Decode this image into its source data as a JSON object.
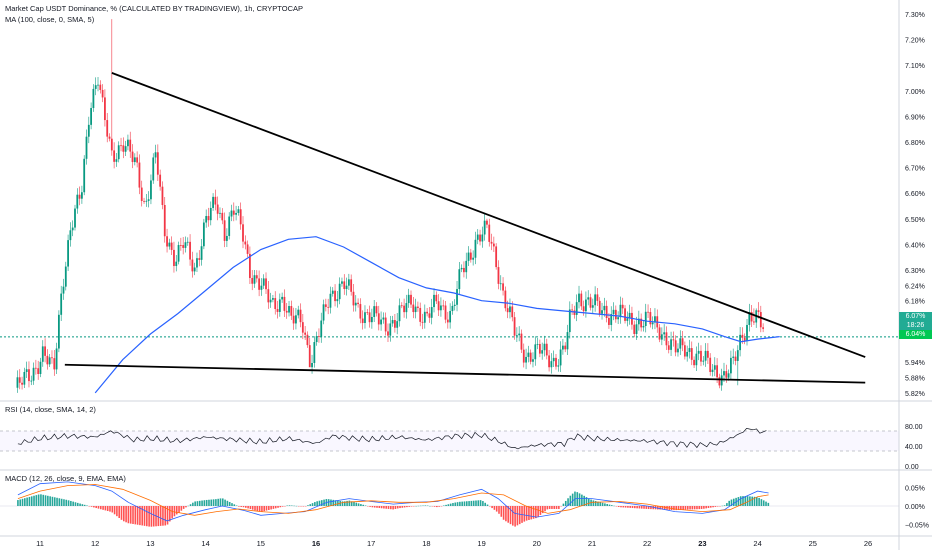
{
  "header": {
    "title": "Market Cap USDT Dominance, % (CALCULATED BY TRADINGVIEW), 1h, CRYPTOCAP",
    "ma_label": "MA (100, close, 0, SMA, 5)",
    "rsi_label": "RSI (14, close, SMA, 14, 2)",
    "macd_label": "MACD (12, 26, close, 9, EMA, EMA)"
  },
  "price_tags": {
    "last": "6.07%",
    "countdown": "18:26",
    "ma": "6.04%"
  },
  "colors": {
    "up": "#089981",
    "down": "#f23645",
    "ma": "#2962ff",
    "rsi": "#131722",
    "macd_line": "#2962ff",
    "signal_line": "#ff6d00",
    "hist_up": "#26a69a",
    "hist_down": "#ff5252",
    "dotted": "#089981",
    "trendline": "#000000"
  },
  "chart_data": [
    {
      "type": "candlestick",
      "title": "Market Cap USDT Dominance, % (CALCULATED BY TRADINGVIEW), 1h, CRYPTOCAP",
      "ylim": [
        5.8,
        7.3
      ],
      "yticks": [
        "7.30%",
        "7.20%",
        "7.10%",
        "7.00%",
        "6.90%",
        "6.80%",
        "6.70%",
        "6.60%",
        "6.50%",
        "6.40%",
        "6.30%",
        "6.24%",
        "6.18%",
        "6.12%",
        "5.94%",
        "5.88%",
        "5.82%"
      ],
      "ytick_values": [
        7.3,
        7.2,
        7.1,
        7.0,
        6.9,
        6.8,
        6.7,
        6.6,
        6.5,
        6.4,
        6.3,
        6.24,
        6.18,
        6.12,
        5.94,
        5.88,
        5.82
      ],
      "xticks": [
        "11",
        "12",
        "13",
        "14",
        "15",
        "16",
        "17",
        "18",
        "19",
        "20",
        "21",
        "22",
        "23",
        "24",
        "25",
        "26"
      ],
      "bold_xticks": [
        "16",
        "23"
      ],
      "close_path": [
        [
          10.6,
          5.84
        ],
        [
          10.85,
          5.9
        ],
        [
          11.05,
          5.97
        ],
        [
          11.25,
          5.9
        ],
        [
          11.4,
          6.25
        ],
        [
          11.55,
          6.45
        ],
        [
          11.75,
          6.6
        ],
        [
          11.9,
          6.95
        ],
        [
          12.05,
          7.05
        ],
        [
          12.15,
          6.9
        ],
        [
          12.3,
          6.75
        ],
        [
          12.5,
          6.8
        ],
        [
          12.75,
          6.7
        ],
        [
          12.9,
          6.55
        ],
        [
          13.1,
          6.75
        ],
        [
          13.25,
          6.45
        ],
        [
          13.45,
          6.35
        ],
        [
          13.6,
          6.4
        ],
        [
          13.8,
          6.3
        ],
        [
          14.0,
          6.5
        ],
        [
          14.2,
          6.55
        ],
        [
          14.35,
          6.45
        ],
        [
          14.5,
          6.55
        ],
        [
          14.65,
          6.45
        ],
        [
          14.8,
          6.3
        ],
        [
          15.0,
          6.25
        ],
        [
          15.2,
          6.15
        ],
        [
          15.4,
          6.2
        ],
        [
          15.55,
          6.1
        ],
        [
          15.75,
          6.1
        ],
        [
          15.9,
          5.95
        ],
        [
          16.05,
          6.05
        ],
        [
          16.25,
          6.2
        ],
        [
          16.5,
          6.25
        ],
        [
          16.75,
          6.15
        ],
        [
          17.0,
          6.12
        ],
        [
          17.25,
          6.08
        ],
        [
          17.5,
          6.12
        ],
        [
          17.75,
          6.18
        ],
        [
          18.0,
          6.1
        ],
        [
          18.2,
          6.18
        ],
        [
          18.45,
          6.12
        ],
        [
          18.65,
          6.3
        ],
        [
          18.9,
          6.42
        ],
        [
          19.1,
          6.45
        ],
        [
          19.25,
          6.35
        ],
        [
          19.4,
          6.2
        ],
        [
          19.6,
          6.05
        ],
        [
          19.8,
          5.97
        ],
        [
          20.05,
          5.98
        ],
        [
          20.3,
          5.95
        ],
        [
          20.5,
          5.98
        ],
        [
          20.6,
          6.1
        ],
        [
          20.75,
          6.2
        ],
        [
          21.0,
          6.16
        ],
        [
          21.25,
          6.14
        ],
        [
          21.5,
          6.12
        ],
        [
          21.75,
          6.1
        ],
        [
          22.0,
          6.1
        ],
        [
          22.25,
          6.07
        ],
        [
          22.5,
          5.98
        ],
        [
          22.7,
          6.0
        ],
        [
          22.95,
          5.95
        ],
        [
          23.2,
          5.92
        ],
        [
          23.4,
          5.88
        ],
        [
          23.55,
          5.92
        ],
        [
          23.7,
          6.04
        ],
        [
          23.85,
          6.12
        ],
        [
          24.0,
          6.1
        ],
        [
          24.1,
          6.07
        ]
      ],
      "highs": [
        [
          12.3,
          7.28
        ],
        [
          19.1,
          6.5
        ],
        [
          20.8,
          6.22
        ],
        [
          23.95,
          6.15
        ]
      ],
      "lows": [
        [
          10.6,
          5.82
        ],
        [
          15.9,
          5.94
        ],
        [
          23.65,
          5.85
        ]
      ],
      "last_close": 6.07,
      "ma_path": [
        [
          12.0,
          5.82
        ],
        [
          12.5,
          5.95
        ],
        [
          13.0,
          6.05
        ],
        [
          13.5,
          6.13
        ],
        [
          14.0,
          6.22
        ],
        [
          14.5,
          6.31
        ],
        [
          15.0,
          6.38
        ],
        [
          15.5,
          6.42
        ],
        [
          16.0,
          6.43
        ],
        [
          16.5,
          6.39
        ],
        [
          17.0,
          6.33
        ],
        [
          17.5,
          6.27
        ],
        [
          18.0,
          6.23
        ],
        [
          18.5,
          6.21
        ],
        [
          19.0,
          6.18
        ],
        [
          19.5,
          6.17
        ],
        [
          20.0,
          6.15
        ],
        [
          20.5,
          6.14
        ],
        [
          21.0,
          6.13
        ],
        [
          21.5,
          6.12
        ],
        [
          22.0,
          6.1
        ],
        [
          22.5,
          6.09
        ],
        [
          23.0,
          6.07
        ],
        [
          23.4,
          6.04
        ],
        [
          23.7,
          6.02
        ],
        [
          24.0,
          6.03
        ],
        [
          24.4,
          6.04
        ]
      ],
      "trendlines": [
        {
          "from": [
            12.3,
            7.07
          ],
          "to": [
            25.95,
            5.96
          ]
        },
        {
          "from": [
            11.45,
            5.93
          ],
          "to": [
            25.95,
            5.86
          ]
        }
      ]
    },
    {
      "type": "line",
      "title": "RSI (14, close, SMA, 14, 2)",
      "ylim": [
        0,
        100
      ],
      "yticks": [
        "80.00",
        "40.00",
        "0.00"
      ],
      "ytick_values": [
        80,
        40,
        0
      ],
      "path": [
        [
          10.6,
          45
        ],
        [
          11.0,
          55
        ],
        [
          11.5,
          60
        ],
        [
          12.0,
          58
        ],
        [
          12.3,
          70
        ],
        [
          12.7,
          52
        ],
        [
          13.0,
          55
        ],
        [
          13.5,
          50
        ],
        [
          14.0,
          58
        ],
        [
          14.5,
          53
        ],
        [
          15.0,
          48
        ],
        [
          15.5,
          55
        ],
        [
          16.0,
          45
        ],
        [
          16.3,
          60
        ],
        [
          16.7,
          55
        ],
        [
          17.0,
          53
        ],
        [
          17.5,
          58
        ],
        [
          18.0,
          52
        ],
        [
          18.5,
          60
        ],
        [
          19.0,
          62
        ],
        [
          19.3,
          50
        ],
        [
          19.6,
          35
        ],
        [
          20.0,
          42
        ],
        [
          20.5,
          45
        ],
        [
          20.7,
          60
        ],
        [
          21.0,
          55
        ],
        [
          21.5,
          52
        ],
        [
          22.0,
          50
        ],
        [
          22.5,
          45
        ],
        [
          23.0,
          42
        ],
        [
          23.3,
          45
        ],
        [
          23.6,
          60
        ],
        [
          23.85,
          76
        ],
        [
          24.0,
          70
        ],
        [
          24.2,
          66
        ]
      ]
    },
    {
      "type": "line",
      "title": "MACD (12, 26, close, 9, EMA, EMA)",
      "ylim": [
        -0.07,
        0.07
      ],
      "yticks": [
        "0.05%",
        "0.00%",
        "−0.05%"
      ],
      "ytick_values": [
        0.05,
        0.0,
        -0.05
      ],
      "macd": [
        [
          10.6,
          0.03
        ],
        [
          11.0,
          0.06
        ],
        [
          11.5,
          0.065
        ],
        [
          12.0,
          0.055
        ],
        [
          12.3,
          0.04
        ],
        [
          12.6,
          0.01
        ],
        [
          13.0,
          -0.02
        ],
        [
          13.3,
          -0.04
        ],
        [
          13.6,
          -0.025
        ],
        [
          14.0,
          -0.01
        ],
        [
          14.3,
          0.0
        ],
        [
          14.7,
          -0.012
        ],
        [
          15.0,
          -0.025
        ],
        [
          15.4,
          -0.02
        ],
        [
          15.8,
          -0.015
        ],
        [
          16.2,
          0.01
        ],
        [
          16.6,
          0.02
        ],
        [
          17.0,
          0.012
        ],
        [
          17.4,
          0.005
        ],
        [
          17.8,
          0.01
        ],
        [
          18.2,
          0.012
        ],
        [
          18.6,
          0.03
        ],
        [
          19.0,
          0.045
        ],
        [
          19.3,
          0.02
        ],
        [
          19.6,
          -0.02
        ],
        [
          20.0,
          -0.03
        ],
        [
          20.4,
          -0.02
        ],
        [
          20.7,
          0.02
        ],
        [
          21.0,
          0.02
        ],
        [
          21.5,
          0.01
        ],
        [
          22.0,
          0.0
        ],
        [
          22.5,
          -0.015
        ],
        [
          23.0,
          -0.02
        ],
        [
          23.4,
          -0.01
        ],
        [
          23.7,
          0.02
        ],
        [
          24.0,
          0.04
        ],
        [
          24.2,
          0.035
        ]
      ],
      "signal": [
        [
          10.6,
          0.02
        ],
        [
          11.0,
          0.04
        ],
        [
          11.5,
          0.055
        ],
        [
          12.0,
          0.058
        ],
        [
          12.5,
          0.045
        ],
        [
          13.0,
          0.015
        ],
        [
          13.4,
          -0.015
        ],
        [
          13.8,
          -0.025
        ],
        [
          14.2,
          -0.015
        ],
        [
          14.6,
          -0.008
        ],
        [
          15.0,
          -0.015
        ],
        [
          15.5,
          -0.02
        ],
        [
          16.0,
          -0.01
        ],
        [
          16.5,
          0.01
        ],
        [
          17.0,
          0.014
        ],
        [
          17.5,
          0.01
        ],
        [
          18.0,
          0.01
        ],
        [
          18.5,
          0.02
        ],
        [
          19.0,
          0.035
        ],
        [
          19.4,
          0.03
        ],
        [
          19.8,
          0.0
        ],
        [
          20.2,
          -0.02
        ],
        [
          20.6,
          -0.01
        ],
        [
          21.0,
          0.01
        ],
        [
          21.5,
          0.012
        ],
        [
          22.0,
          0.005
        ],
        [
          22.5,
          -0.008
        ],
        [
          23.0,
          -0.015
        ],
        [
          23.5,
          -0.01
        ],
        [
          23.8,
          0.01
        ],
        [
          24.0,
          0.025
        ],
        [
          24.2,
          0.03
        ]
      ]
    }
  ]
}
